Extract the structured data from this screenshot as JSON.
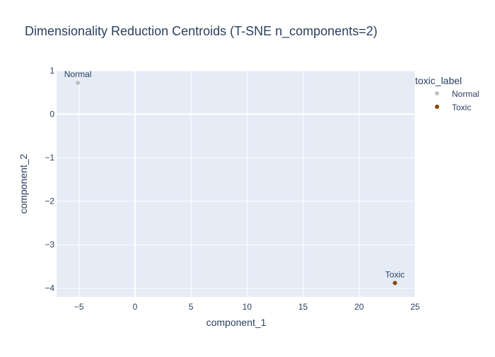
{
  "chart_data": {
    "type": "scatter",
    "title": "Dimensionality Reduction Centroids (T-SNE n_components=2)",
    "xlabel": "component_1",
    "ylabel": "component_2",
    "xlim": [
      -7,
      25
    ],
    "ylim": [
      -4.2,
      1.0
    ],
    "xticks": [
      -5,
      0,
      5,
      10,
      15,
      20,
      25
    ],
    "yticks": [
      -4,
      -3,
      -2,
      -1,
      0,
      1
    ],
    "grid": true,
    "legend": {
      "title": "toxic_label",
      "placement": "top-right"
    },
    "series": [
      {
        "name": "Normal",
        "color": "#c0c0c0",
        "x": [
          -5.1
        ],
        "y": [
          0.72
        ],
        "labels": [
          "Normal"
        ]
      },
      {
        "name": "Toxic",
        "color": "#8b4500",
        "x": [
          23.2
        ],
        "y": [
          -3.88
        ],
        "labels": [
          "Toxic"
        ]
      }
    ]
  },
  "colors": {
    "plot_background": "#e5ecf6",
    "grid": "#ffffff",
    "text": "#2a3f5f"
  }
}
